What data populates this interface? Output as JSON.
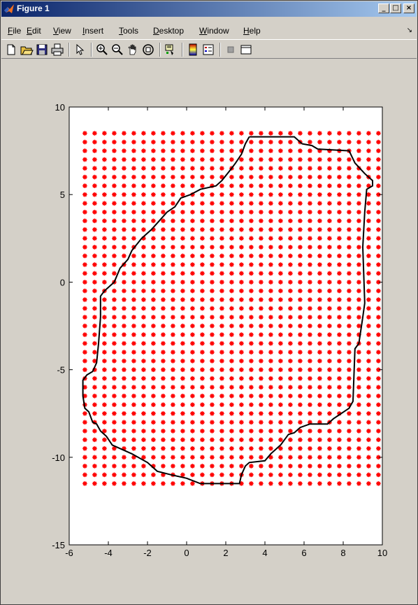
{
  "window": {
    "title": "Figure 1",
    "controls": {
      "minimize": "_",
      "maximize": "□",
      "close": "×"
    }
  },
  "menu": {
    "items": [
      "File",
      "Edit",
      "View",
      "Insert",
      "Tools",
      "Desktop",
      "Window",
      "Help"
    ],
    "overflow": "↘"
  },
  "toolbar": {
    "buttons": [
      "new-figure-icon",
      "open-file-icon",
      "save-icon",
      "print-icon",
      "edit-plot-icon",
      "zoom-in-icon",
      "zoom-out-icon",
      "pan-icon",
      "rotate-3d-icon",
      "data-cursor-icon",
      "colorbar-icon",
      "legend-icon",
      "hide-plot-tools-icon",
      "show-plot-tools-icon"
    ]
  },
  "colors": {
    "titlebar_start": "#0a246a",
    "titlebar_end": "#a6caf0",
    "marker": "#ff0000",
    "boundary": "#000000",
    "background": "#d4d0c8"
  },
  "chart_data": {
    "type": "scatter",
    "title": "",
    "xlabel": "",
    "ylabel": "",
    "xlim": [
      -6,
      10
    ],
    "ylim": [
      -15,
      10
    ],
    "xticks": [
      -6,
      -4,
      -2,
      0,
      2,
      4,
      6,
      8,
      10
    ],
    "yticks": [
      -15,
      -10,
      -5,
      0,
      5,
      10
    ],
    "grid": false,
    "series": [
      {
        "kind": "grid-markers",
        "marker": "*",
        "color": "#ff0000",
        "x_start": -5.2,
        "x_end": 9.8,
        "x_step": 0.5,
        "y_start": -11.5,
        "y_end": 8.5,
        "y_step": 0.5
      },
      {
        "kind": "boundary-line",
        "color": "#000000",
        "points": [
          [
            3.2,
            8.3
          ],
          [
            5.5,
            8.3
          ],
          [
            5.9,
            7.9
          ],
          [
            6.4,
            7.8
          ],
          [
            6.7,
            7.6
          ],
          [
            8.3,
            7.5
          ],
          [
            8.6,
            6.8
          ],
          [
            9.1,
            6.2
          ],
          [
            9.5,
            5.8
          ],
          [
            9.5,
            5.5
          ],
          [
            9.2,
            5.3
          ],
          [
            9.1,
            4.0
          ],
          [
            9.0,
            2.0
          ],
          [
            9.1,
            -1.2
          ],
          [
            9.0,
            -2.0
          ],
          [
            8.8,
            -3.5
          ],
          [
            8.6,
            -3.8
          ],
          [
            8.5,
            -6.8
          ],
          [
            8.3,
            -7.2
          ],
          [
            7.5,
            -7.8
          ],
          [
            7.2,
            -8.1
          ],
          [
            6.3,
            -8.1
          ],
          [
            5.8,
            -8.3
          ],
          [
            5.5,
            -8.6
          ],
          [
            5.2,
            -8.7
          ],
          [
            4.8,
            -9.3
          ],
          [
            4.3,
            -9.8
          ],
          [
            4.0,
            -10.2
          ],
          [
            3.2,
            -10.3
          ],
          [
            3.0,
            -10.5
          ],
          [
            2.8,
            -11.0
          ],
          [
            2.7,
            -11.5
          ],
          [
            0.7,
            -11.5
          ],
          [
            0.0,
            -11.2
          ],
          [
            -0.8,
            -11.0
          ],
          [
            -1.5,
            -10.8
          ],
          [
            -2.0,
            -10.3
          ],
          [
            -2.8,
            -9.8
          ],
          [
            -3.2,
            -9.6
          ],
          [
            -3.8,
            -9.3
          ],
          [
            -4.1,
            -8.8
          ],
          [
            -4.4,
            -8.5
          ],
          [
            -4.6,
            -8.1
          ],
          [
            -4.8,
            -8.0
          ],
          [
            -5.0,
            -7.4
          ],
          [
            -5.2,
            -7.2
          ],
          [
            -5.3,
            -6.5
          ],
          [
            -5.3,
            -5.6
          ],
          [
            -5.1,
            -5.3
          ],
          [
            -4.8,
            -5.1
          ],
          [
            -4.6,
            -4.6
          ],
          [
            -4.5,
            -3.5
          ],
          [
            -4.4,
            -2.0
          ],
          [
            -4.4,
            -0.8
          ],
          [
            -4.2,
            -0.5
          ],
          [
            -3.7,
            0.0
          ],
          [
            -3.4,
            0.8
          ],
          [
            -3.0,
            1.3
          ],
          [
            -2.8,
            1.8
          ],
          [
            -2.3,
            2.5
          ],
          [
            -1.8,
            3.0
          ],
          [
            -1.4,
            3.5
          ],
          [
            -1.0,
            4.0
          ],
          [
            -0.6,
            4.3
          ],
          [
            -0.3,
            4.8
          ],
          [
            0.2,
            5.0
          ],
          [
            0.7,
            5.3
          ],
          [
            1.5,
            5.5
          ],
          [
            1.8,
            5.8
          ],
          [
            2.3,
            6.5
          ],
          [
            2.5,
            6.8
          ],
          [
            2.8,
            7.3
          ],
          [
            3.0,
            7.9
          ],
          [
            3.2,
            8.3
          ]
        ]
      }
    ]
  }
}
